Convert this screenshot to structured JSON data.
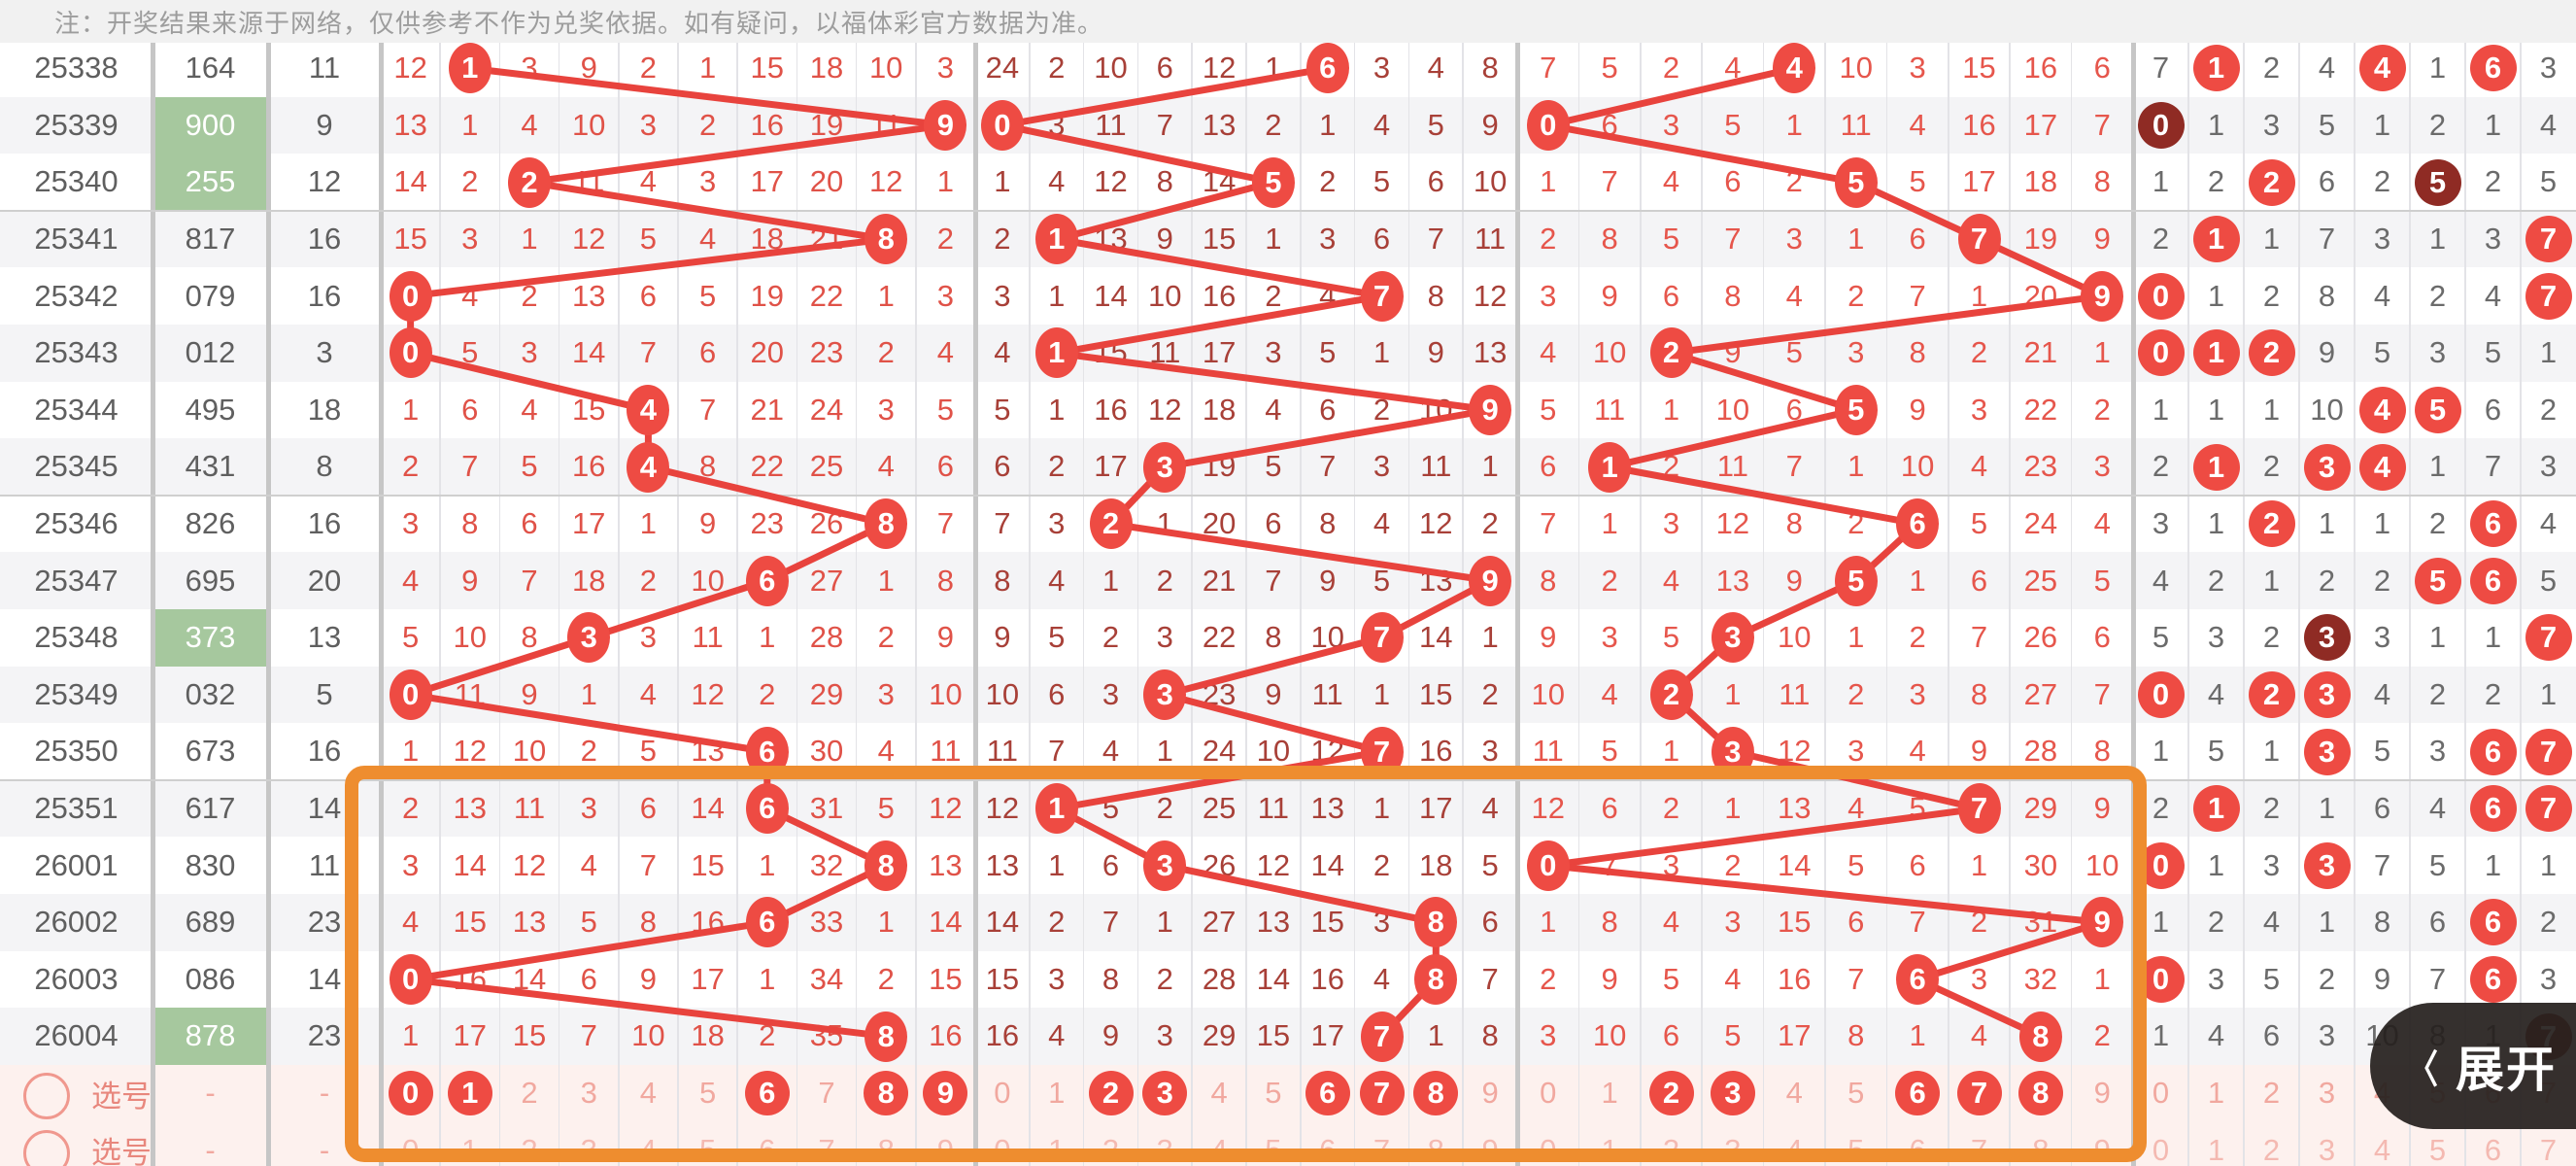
{
  "note": "注：开奖结果来源于网络，仅供参考不作为兑奖依据。如有疑问，以福体彩官方数据为准。",
  "expand_button": {
    "label": "展开",
    "chevron": "〈"
  },
  "pick_label": "选号",
  "empty_value": "-",
  "colors": {
    "note_bg": "#f1f1f1",
    "note_text": "#9d9d9d",
    "zebra": "#f4f4f6",
    "left_text": "#5f5f5f",
    "green_bg": "#a6c89e",
    "green_text": "#ffffff",
    "zone1_text": "#e05248",
    "zone2_text": "#a84038",
    "zone3_text": "#e6564c",
    "zone4_text": "#6b6b6b",
    "circle_red": "#ee4b43",
    "circle_dark": "#8f2b24",
    "line_red": "#e8433d",
    "pick_bg": "#fdf1ee",
    "pick_digit": "#f1a89f",
    "pick_digit_dim": "#f4b9b1",
    "pick_label_text": "#e8877d",
    "thin_border": "#e3e3e7",
    "thick_border": "#c6c6c6",
    "group_border": "#cfcfcf",
    "orange": "#ee8d2f",
    "button_bg": "#26201e"
  },
  "legend": "cells: plain number = miss count; C# = red circle (drawn digit); D# = dark-red circle (repeated digit); S# = selected pick digit",
  "rows": [
    {
      "issue": "25338",
      "result": "164",
      "sum": "11",
      "green": false,
      "z1": [
        "12",
        "C1",
        "3",
        "9",
        "2",
        "1",
        "15",
        "18",
        "10",
        "3"
      ],
      "z2": [
        "24",
        "2",
        "10",
        "6",
        "12",
        "1",
        "C6",
        "3",
        "4",
        "8"
      ],
      "z3": [
        "7",
        "5",
        "2",
        "4",
        "C4",
        "10",
        "3",
        "15",
        "16",
        "6"
      ],
      "z4": [
        "7",
        "C1",
        "2",
        "4",
        "C4",
        "1",
        "C6",
        "3"
      ]
    },
    {
      "issue": "25339",
      "result": "900",
      "sum": "9",
      "green": true,
      "z1": [
        "13",
        "1",
        "4",
        "10",
        "3",
        "2",
        "16",
        "19",
        "11",
        "C9"
      ],
      "z2": [
        "C0",
        "3",
        "11",
        "7",
        "13",
        "2",
        "1",
        "4",
        "5",
        "9"
      ],
      "z3": [
        "C0",
        "6",
        "3",
        "5",
        "1",
        "11",
        "4",
        "16",
        "17",
        "7"
      ],
      "z4": [
        "D0",
        "1",
        "3",
        "5",
        "1",
        "2",
        "1",
        "4"
      ]
    },
    {
      "issue": "25340",
      "result": "255",
      "sum": "12",
      "green": true,
      "z1": [
        "14",
        "2",
        "C2",
        "11",
        "4",
        "3",
        "17",
        "20",
        "12",
        "1"
      ],
      "z2": [
        "1",
        "4",
        "12",
        "8",
        "14",
        "C5",
        "2",
        "5",
        "6",
        "10"
      ],
      "z3": [
        "1",
        "7",
        "4",
        "6",
        "2",
        "C5",
        "5",
        "17",
        "18",
        "8"
      ],
      "z4": [
        "1",
        "2",
        "C2",
        "6",
        "2",
        "D5",
        "2",
        "5"
      ]
    },
    {
      "issue": "25341",
      "result": "817",
      "sum": "16",
      "green": false,
      "z1": [
        "15",
        "3",
        "1",
        "12",
        "5",
        "4",
        "18",
        "21",
        "C8",
        "2"
      ],
      "z2": [
        "2",
        "C1",
        "13",
        "9",
        "15",
        "1",
        "3",
        "6",
        "7",
        "11"
      ],
      "z3": [
        "2",
        "8",
        "5",
        "7",
        "3",
        "1",
        "6",
        "C7",
        "19",
        "9"
      ],
      "z4": [
        "2",
        "C1",
        "1",
        "7",
        "3",
        "1",
        "3",
        "C7"
      ]
    },
    {
      "issue": "25342",
      "result": "079",
      "sum": "16",
      "green": false,
      "z1": [
        "C0",
        "4",
        "2",
        "13",
        "6",
        "5",
        "19",
        "22",
        "1",
        "3"
      ],
      "z2": [
        "3",
        "1",
        "14",
        "10",
        "16",
        "2",
        "4",
        "C7",
        "8",
        "12"
      ],
      "z3": [
        "3",
        "9",
        "6",
        "8",
        "4",
        "2",
        "7",
        "1",
        "20",
        "C9"
      ],
      "z4": [
        "C0",
        "1",
        "2",
        "8",
        "4",
        "2",
        "4",
        "C7"
      ]
    },
    {
      "issue": "25343",
      "result": "012",
      "sum": "3",
      "green": false,
      "z1": [
        "C0",
        "5",
        "3",
        "14",
        "7",
        "6",
        "20",
        "23",
        "2",
        "4"
      ],
      "z2": [
        "4",
        "C1",
        "15",
        "11",
        "17",
        "3",
        "5",
        "1",
        "9",
        "13"
      ],
      "z3": [
        "4",
        "10",
        "C2",
        "9",
        "5",
        "3",
        "8",
        "2",
        "21",
        "1"
      ],
      "z4": [
        "C0",
        "C1",
        "C2",
        "9",
        "5",
        "3",
        "5",
        "1"
      ]
    },
    {
      "issue": "25344",
      "result": "495",
      "sum": "18",
      "green": false,
      "z1": [
        "1",
        "6",
        "4",
        "15",
        "C4",
        "7",
        "21",
        "24",
        "3",
        "5"
      ],
      "z2": [
        "5",
        "1",
        "16",
        "12",
        "18",
        "4",
        "6",
        "2",
        "10",
        "C9"
      ],
      "z3": [
        "5",
        "11",
        "1",
        "10",
        "6",
        "C5",
        "9",
        "3",
        "22",
        "2"
      ],
      "z4": [
        "1",
        "1",
        "1",
        "10",
        "C4",
        "C5",
        "6",
        "2"
      ]
    },
    {
      "issue": "25345",
      "result": "431",
      "sum": "8",
      "green": false,
      "z1": [
        "2",
        "7",
        "5",
        "16",
        "C4",
        "8",
        "22",
        "25",
        "4",
        "6"
      ],
      "z2": [
        "6",
        "2",
        "17",
        "C3",
        "19",
        "5",
        "7",
        "3",
        "11",
        "1"
      ],
      "z3": [
        "6",
        "C1",
        "2",
        "11",
        "7",
        "1",
        "10",
        "4",
        "23",
        "3"
      ],
      "z4": [
        "2",
        "C1",
        "2",
        "C3",
        "C4",
        "1",
        "7",
        "3"
      ]
    },
    {
      "issue": "25346",
      "result": "826",
      "sum": "16",
      "green": false,
      "z1": [
        "3",
        "8",
        "6",
        "17",
        "1",
        "9",
        "23",
        "26",
        "C8",
        "7"
      ],
      "z2": [
        "7",
        "3",
        "C2",
        "1",
        "20",
        "6",
        "8",
        "4",
        "12",
        "2"
      ],
      "z3": [
        "7",
        "1",
        "3",
        "12",
        "8",
        "2",
        "C6",
        "5",
        "24",
        "4"
      ],
      "z4": [
        "3",
        "1",
        "C2",
        "1",
        "1",
        "2",
        "C6",
        "4"
      ]
    },
    {
      "issue": "25347",
      "result": "695",
      "sum": "20",
      "green": false,
      "z1": [
        "4",
        "9",
        "7",
        "18",
        "2",
        "10",
        "C6",
        "27",
        "1",
        "8"
      ],
      "z2": [
        "8",
        "4",
        "1",
        "2",
        "21",
        "7",
        "9",
        "5",
        "13",
        "C9"
      ],
      "z3": [
        "8",
        "2",
        "4",
        "13",
        "9",
        "C5",
        "1",
        "6",
        "25",
        "5"
      ],
      "z4": [
        "4",
        "2",
        "1",
        "2",
        "2",
        "C5",
        "C6",
        "5"
      ]
    },
    {
      "issue": "25348",
      "result": "373",
      "sum": "13",
      "green": true,
      "z1": [
        "5",
        "10",
        "8",
        "C3",
        "3",
        "11",
        "1",
        "28",
        "2",
        "9"
      ],
      "z2": [
        "9",
        "5",
        "2",
        "3",
        "22",
        "8",
        "10",
        "C7",
        "14",
        "1"
      ],
      "z3": [
        "9",
        "3",
        "5",
        "C3",
        "10",
        "1",
        "2",
        "7",
        "26",
        "6"
      ],
      "z4": [
        "5",
        "3",
        "2",
        "D3",
        "3",
        "1",
        "1",
        "C7"
      ]
    },
    {
      "issue": "25349",
      "result": "032",
      "sum": "5",
      "green": false,
      "z1": [
        "C0",
        "11",
        "9",
        "1",
        "4",
        "12",
        "2",
        "29",
        "3",
        "10"
      ],
      "z2": [
        "10",
        "6",
        "3",
        "C3",
        "23",
        "9",
        "11",
        "1",
        "15",
        "2"
      ],
      "z3": [
        "10",
        "4",
        "C2",
        "1",
        "11",
        "2",
        "3",
        "8",
        "27",
        "7"
      ],
      "z4": [
        "C0",
        "4",
        "C2",
        "C3",
        "4",
        "2",
        "2",
        "1"
      ]
    },
    {
      "issue": "25350",
      "result": "673",
      "sum": "16",
      "green": false,
      "z1": [
        "1",
        "12",
        "10",
        "2",
        "5",
        "13",
        "C6",
        "30",
        "4",
        "11"
      ],
      "z2": [
        "11",
        "7",
        "4",
        "1",
        "24",
        "10",
        "12",
        "C7",
        "16",
        "3"
      ],
      "z3": [
        "11",
        "5",
        "1",
        "C3",
        "12",
        "3",
        "4",
        "9",
        "28",
        "8"
      ],
      "z4": [
        "1",
        "5",
        "1",
        "C3",
        "5",
        "3",
        "C6",
        "C7"
      ]
    },
    {
      "issue": "25351",
      "result": "617",
      "sum": "14",
      "green": false,
      "z1": [
        "2",
        "13",
        "11",
        "3",
        "6",
        "14",
        "C6",
        "31",
        "5",
        "12"
      ],
      "z2": [
        "12",
        "C1",
        "5",
        "2",
        "25",
        "11",
        "13",
        "1",
        "17",
        "4"
      ],
      "z3": [
        "12",
        "6",
        "2",
        "1",
        "13",
        "4",
        "5",
        "C7",
        "29",
        "9"
      ],
      "z4": [
        "2",
        "C1",
        "2",
        "1",
        "6",
        "4",
        "C6",
        "C7"
      ]
    },
    {
      "issue": "26001",
      "result": "830",
      "sum": "11",
      "green": false,
      "z1": [
        "3",
        "14",
        "12",
        "4",
        "7",
        "15",
        "1",
        "32",
        "C8",
        "13"
      ],
      "z2": [
        "13",
        "1",
        "6",
        "C3",
        "26",
        "12",
        "14",
        "2",
        "18",
        "5"
      ],
      "z3": [
        "C0",
        "7",
        "3",
        "2",
        "14",
        "5",
        "6",
        "1",
        "30",
        "10"
      ],
      "z4": [
        "C0",
        "1",
        "3",
        "C3",
        "7",
        "5",
        "1",
        "1"
      ]
    },
    {
      "issue": "26002",
      "result": "689",
      "sum": "23",
      "green": false,
      "z1": [
        "4",
        "15",
        "13",
        "5",
        "8",
        "16",
        "C6",
        "33",
        "1",
        "14"
      ],
      "z2": [
        "14",
        "2",
        "7",
        "1",
        "27",
        "13",
        "15",
        "3",
        "C8",
        "6"
      ],
      "z3": [
        "1",
        "8",
        "4",
        "3",
        "15",
        "6",
        "7",
        "2",
        "31",
        "C9"
      ],
      "z4": [
        "1",
        "2",
        "4",
        "1",
        "8",
        "6",
        "C6",
        "2"
      ]
    },
    {
      "issue": "26003",
      "result": "086",
      "sum": "14",
      "green": false,
      "z1": [
        "C0",
        "16",
        "14",
        "6",
        "9",
        "17",
        "1",
        "34",
        "2",
        "15"
      ],
      "z2": [
        "15",
        "3",
        "8",
        "2",
        "28",
        "14",
        "16",
        "4",
        "C8",
        "7"
      ],
      "z3": [
        "2",
        "9",
        "5",
        "4",
        "16",
        "7",
        "C6",
        "3",
        "32",
        "1"
      ],
      "z4": [
        "C0",
        "3",
        "5",
        "2",
        "9",
        "7",
        "C6",
        "3"
      ]
    },
    {
      "issue": "26004",
      "result": "878",
      "sum": "23",
      "green": true,
      "z1": [
        "1",
        "17",
        "15",
        "7",
        "10",
        "18",
        "2",
        "35",
        "C8",
        "16"
      ],
      "z2": [
        "16",
        "4",
        "9",
        "3",
        "29",
        "15",
        "17",
        "C7",
        "1",
        "8"
      ],
      "z3": [
        "3",
        "10",
        "6",
        "5",
        "17",
        "8",
        "1",
        "4",
        "C8",
        "2"
      ],
      "z4": [
        "1",
        "4",
        "6",
        "3",
        "10",
        "8",
        "1",
        "D7"
      ]
    }
  ],
  "pick_rows": [
    {
      "label": "选号",
      "result": "-",
      "sum": "-",
      "z1": [
        "S0",
        "S1",
        "2",
        "3",
        "4",
        "5",
        "S6",
        "7",
        "S8",
        "S9"
      ],
      "z2": [
        "0",
        "1",
        "S2",
        "S3",
        "4",
        "5",
        "S6",
        "S7",
        "S8",
        "9"
      ],
      "z3": [
        "0",
        "1",
        "S2",
        "S3",
        "4",
        "5",
        "S6",
        "S7",
        "S8",
        "9"
      ],
      "z4": [
        "0",
        "1",
        "2",
        "3",
        "4",
        "5",
        "6",
        "7"
      ]
    },
    {
      "label": "选号",
      "result": "-",
      "sum": "-",
      "z1": [
        "0",
        "1",
        "2",
        "3",
        "4",
        "5",
        "6",
        "7",
        "8",
        "9"
      ],
      "z2": [
        "0",
        "1",
        "2",
        "3",
        "4",
        "5",
        "6",
        "7",
        "8",
        "9"
      ],
      "z3": [
        "0",
        "1",
        "2",
        "3",
        "4",
        "5",
        "6",
        "7",
        "8",
        "9"
      ],
      "z4": [
        "0",
        "1",
        "2",
        "3",
        "4",
        "5",
        "6",
        "7"
      ]
    }
  ]
}
